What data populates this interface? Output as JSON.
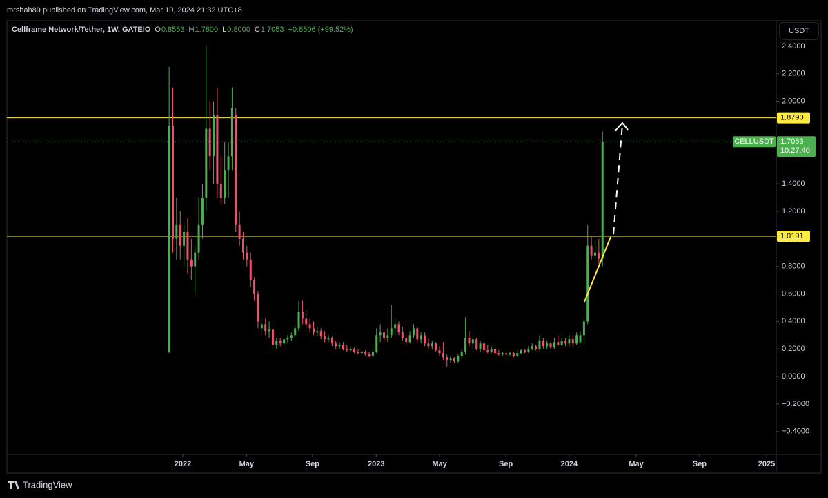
{
  "header": {
    "published": "mrshah89 published on TradingView.com, Mar 10, 2024 21:32 UTC+8",
    "brand": "TradingView"
  },
  "chart_data": {
    "type": "candlestick",
    "legend": {
      "symbol": "Cellframe Network/Tether, 1W, GATEIO",
      "ohlc": [
        {
          "label": "O",
          "value": "0.8553"
        },
        {
          "label": "H",
          "value": "1.7800"
        },
        {
          "label": "L",
          "value": "0.8000"
        },
        {
          "label": "C",
          "value": "1.7053"
        }
      ],
      "change": "+0.8506 (+99.52%)"
    },
    "currency": "USDT",
    "up_color": "#4caf50",
    "down_color": "#f0506e",
    "xlim": [
      -43.8,
      163.9
    ],
    "xticks": [
      {
        "value": 3.7,
        "label": "2022"
      },
      {
        "value": 20.9,
        "label": "May"
      },
      {
        "value": 38.7,
        "label": "Sep"
      },
      {
        "value": 55.9,
        "label": "2023"
      },
      {
        "value": 73.0,
        "label": "May"
      },
      {
        "value": 90.9,
        "label": "Sep"
      },
      {
        "value": 108.0,
        "label": "2024"
      },
      {
        "value": 126.1,
        "label": "May"
      },
      {
        "value": 143.2,
        "label": "Sep"
      },
      {
        "value": 161.3,
        "label": "2025"
      }
    ],
    "ylim": [
      -0.567,
      2.585
    ],
    "yticks": [
      {
        "value": -0.4,
        "label": "−0.4000"
      },
      {
        "value": -0.2,
        "label": "−0.2000"
      },
      {
        "value": 0,
        "label": "0.0000"
      },
      {
        "value": 0.2,
        "label": "0.2000"
      },
      {
        "value": 0.4,
        "label": "0.4000"
      },
      {
        "value": 0.6,
        "label": "0.6000"
      },
      {
        "value": 0.8,
        "label": "0.8000"
      },
      {
        "value": 1.2,
        "label": "1.2000"
      },
      {
        "value": 1.4,
        "label": "1.4000"
      },
      {
        "value": 2.0,
        "label": "2.0000"
      },
      {
        "value": 2.2,
        "label": "2.2000"
      },
      {
        "value": 2.4,
        "label": "2.4000"
      }
    ],
    "levels": [
      {
        "value": 1.879,
        "label": "1.8790",
        "color": "#ffeb3b"
      },
      {
        "value": 1.0191,
        "label": "1.0191",
        "color": "#ffeb3b"
      }
    ],
    "last_price": {
      "value": 1.7053,
      "label": "1.7053",
      "name": "CELLUSDT",
      "countdown": "10:27:40"
    },
    "x": [
      0,
      1,
      2,
      3,
      4,
      5,
      6,
      7,
      8,
      9,
      10,
      11,
      12,
      13,
      14,
      15,
      16,
      17,
      18,
      19,
      20,
      21,
      22,
      23,
      24,
      25,
      26,
      27,
      28,
      29,
      30,
      31,
      32,
      33,
      34,
      35,
      36,
      37,
      38,
      39,
      40,
      41,
      42,
      43,
      44,
      45,
      46,
      47,
      48,
      49,
      50,
      51,
      52,
      53,
      54,
      55,
      56,
      57,
      58,
      59,
      60,
      61,
      62,
      63,
      64,
      65,
      66,
      67,
      68,
      69,
      70,
      71,
      72,
      73,
      74,
      75,
      76,
      77,
      78,
      79,
      80,
      81,
      82,
      83,
      84,
      85,
      86,
      87,
      88,
      89,
      90,
      91,
      92,
      93,
      94,
      95,
      96,
      97,
      98,
      99,
      100,
      101,
      102,
      103,
      104,
      105,
      106,
      107,
      108,
      109,
      110,
      111,
      112,
      113,
      114,
      115,
      116,
      117
    ],
    "open": [
      0.18,
      1.82,
      1.0,
      1.1,
      0.95,
      1.05,
      0.85,
      0.8,
      0.9,
      1.1,
      1.3,
      1.8,
      1.6,
      1.9,
      1.4,
      1.3,
      1.5,
      1.6,
      1.9,
      1.1,
      1.0,
      0.9,
      0.85,
      0.7,
      0.6,
      0.35,
      0.38,
      0.33,
      0.34,
      0.23,
      0.26,
      0.24,
      0.27,
      0.28,
      0.3,
      0.35,
      0.47,
      0.42,
      0.38,
      0.35,
      0.32,
      0.33,
      0.29,
      0.27,
      0.28,
      0.24,
      0.22,
      0.23,
      0.2,
      0.19,
      0.2,
      0.18,
      0.17,
      0.18,
      0.16,
      0.15,
      0.18,
      0.3,
      0.32,
      0.28,
      0.3,
      0.35,
      0.38,
      0.32,
      0.28,
      0.25,
      0.3,
      0.35,
      0.27,
      0.3,
      0.24,
      0.22,
      0.24,
      0.19,
      0.17,
      0.14,
      0.12,
      0.13,
      0.11,
      0.15,
      0.18,
      0.28,
      0.24,
      0.27,
      0.2,
      0.24,
      0.19,
      0.18,
      0.2,
      0.17,
      0.16,
      0.17,
      0.16,
      0.17,
      0.15,
      0.17,
      0.19,
      0.18,
      0.2,
      0.22,
      0.2,
      0.26,
      0.22,
      0.24,
      0.21,
      0.25,
      0.23,
      0.26,
      0.24,
      0.27,
      0.24,
      0.25,
      0.3,
      0.4,
      0.95,
      0.88,
      0.9,
      0.8553
    ],
    "high": [
      2.25,
      2.1,
      1.3,
      1.2,
      1.1,
      1.15,
      1.0,
      0.95,
      1.3,
      1.4,
      2.4,
      2.0,
      2.0,
      2.1,
      1.6,
      1.7,
      1.7,
      2.1,
      1.95,
      1.2,
      1.05,
      0.95,
      0.9,
      0.72,
      0.62,
      0.42,
      0.42,
      0.4,
      0.36,
      0.28,
      0.28,
      0.28,
      0.3,
      0.32,
      0.38,
      0.55,
      0.55,
      0.48,
      0.42,
      0.4,
      0.36,
      0.35,
      0.33,
      0.3,
      0.29,
      0.26,
      0.25,
      0.25,
      0.23,
      0.22,
      0.21,
      0.2,
      0.19,
      0.19,
      0.18,
      0.2,
      0.35,
      0.38,
      0.34,
      0.35,
      0.52,
      0.42,
      0.4,
      0.36,
      0.3,
      0.33,
      0.38,
      0.36,
      0.32,
      0.32,
      0.28,
      0.26,
      0.25,
      0.22,
      0.25,
      0.16,
      0.15,
      0.14,
      0.16,
      0.2,
      0.43,
      0.33,
      0.3,
      0.28,
      0.26,
      0.25,
      0.23,
      0.22,
      0.21,
      0.19,
      0.18,
      0.18,
      0.18,
      0.18,
      0.19,
      0.2,
      0.2,
      0.22,
      0.24,
      0.23,
      0.3,
      0.28,
      0.26,
      0.25,
      0.28,
      0.3,
      0.28,
      0.28,
      0.3,
      0.3,
      0.32,
      0.33,
      0.42,
      1.1,
      1.02,
      1.0,
      1.0,
      1.78
    ],
    "low": [
      0.17,
      0.9,
      0.85,
      0.85,
      0.8,
      0.75,
      0.7,
      0.6,
      0.85,
      1.0,
      1.2,
      1.5,
      1.4,
      1.3,
      1.25,
      1.25,
      1.3,
      1.5,
      1.05,
      0.95,
      0.85,
      0.8,
      0.65,
      0.55,
      0.35,
      0.3,
      0.3,
      0.28,
      0.2,
      0.2,
      0.22,
      0.22,
      0.24,
      0.26,
      0.28,
      0.33,
      0.38,
      0.35,
      0.32,
      0.3,
      0.29,
      0.27,
      0.25,
      0.25,
      0.22,
      0.2,
      0.2,
      0.19,
      0.18,
      0.18,
      0.17,
      0.16,
      0.16,
      0.15,
      0.14,
      0.14,
      0.17,
      0.25,
      0.26,
      0.25,
      0.28,
      0.3,
      0.3,
      0.26,
      0.23,
      0.24,
      0.28,
      0.25,
      0.24,
      0.22,
      0.2,
      0.2,
      0.18,
      0.15,
      0.12,
      0.07,
      0.1,
      0.1,
      0.1,
      0.13,
      0.16,
      0.22,
      0.2,
      0.19,
      0.18,
      0.18,
      0.17,
      0.17,
      0.16,
      0.15,
      0.15,
      0.15,
      0.15,
      0.14,
      0.14,
      0.16,
      0.17,
      0.17,
      0.19,
      0.19,
      0.19,
      0.2,
      0.2,
      0.2,
      0.2,
      0.22,
      0.22,
      0.22,
      0.22,
      0.22,
      0.23,
      0.24,
      0.24,
      0.38,
      0.85,
      0.85,
      0.82,
      0.8
    ],
    "close": [
      1.82,
      1.0,
      1.1,
      0.95,
      1.05,
      0.85,
      0.8,
      0.9,
      1.1,
      1.3,
      1.8,
      1.6,
      1.9,
      1.4,
      1.3,
      1.5,
      1.6,
      1.95,
      1.1,
      1.0,
      0.9,
      0.85,
      0.7,
      0.6,
      0.4,
      0.38,
      0.33,
      0.34,
      0.23,
      0.26,
      0.24,
      0.27,
      0.28,
      0.3,
      0.35,
      0.47,
      0.42,
      0.38,
      0.35,
      0.32,
      0.33,
      0.29,
      0.27,
      0.28,
      0.24,
      0.22,
      0.23,
      0.2,
      0.19,
      0.2,
      0.18,
      0.17,
      0.18,
      0.16,
      0.15,
      0.18,
      0.3,
      0.32,
      0.28,
      0.3,
      0.35,
      0.38,
      0.32,
      0.28,
      0.25,
      0.3,
      0.35,
      0.27,
      0.3,
      0.24,
      0.22,
      0.24,
      0.19,
      0.17,
      0.14,
      0.12,
      0.13,
      0.11,
      0.15,
      0.18,
      0.28,
      0.24,
      0.27,
      0.2,
      0.24,
      0.19,
      0.18,
      0.2,
      0.17,
      0.16,
      0.17,
      0.16,
      0.17,
      0.15,
      0.17,
      0.19,
      0.18,
      0.2,
      0.22,
      0.2,
      0.26,
      0.22,
      0.24,
      0.21,
      0.25,
      0.23,
      0.26,
      0.24,
      0.27,
      0.24,
      0.3,
      0.3,
      0.4,
      0.95,
      0.88,
      0.9,
      0.855,
      1.7053
    ]
  }
}
